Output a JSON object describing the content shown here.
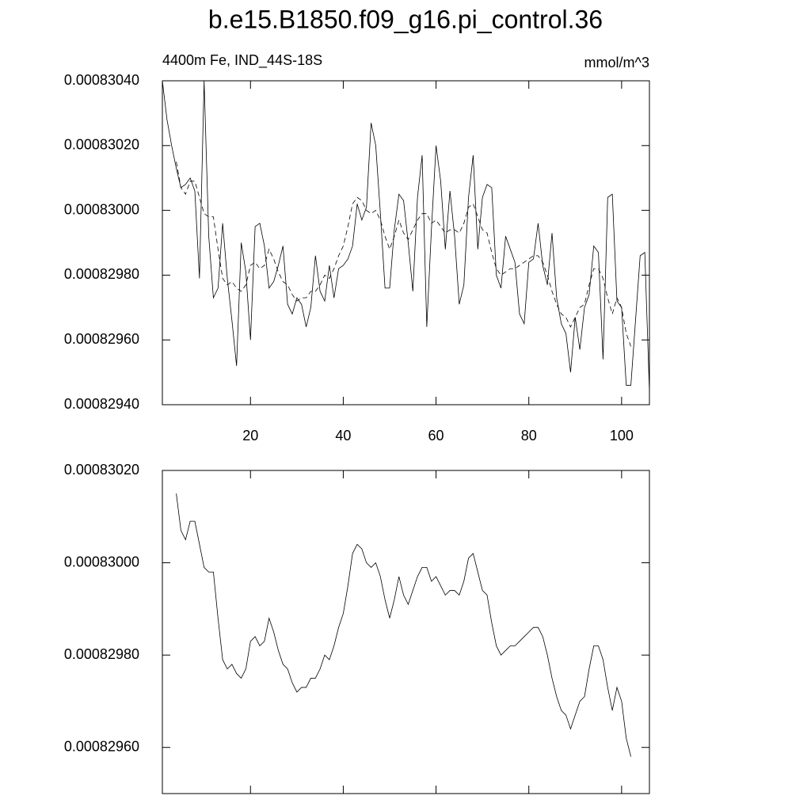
{
  "title": "b.e15.B1850.f09_g16.pi_control.36",
  "chart_data": [
    {
      "type": "line",
      "subtitle_left": "4400m Fe, IND_44S-18S",
      "subtitle_right": "mmol/m^3",
      "x": [
        1,
        2,
        3,
        4,
        5,
        6,
        7,
        8,
        9,
        10,
        11,
        12,
        13,
        14,
        15,
        16,
        17,
        18,
        19,
        20,
        21,
        22,
        23,
        24,
        25,
        26,
        27,
        28,
        29,
        30,
        31,
        32,
        33,
        34,
        35,
        36,
        37,
        38,
        39,
        40,
        41,
        42,
        43,
        44,
        45,
        46,
        47,
        48,
        49,
        50,
        51,
        52,
        53,
        54,
        55,
        56,
        57,
        58,
        59,
        60,
        61,
        62,
        63,
        64,
        65,
        66,
        67,
        68,
        69,
        70,
        71,
        72,
        73,
        74,
        75,
        76,
        77,
        78,
        79,
        80,
        81,
        82,
        83,
        84,
        85,
        86,
        87,
        88,
        89,
        90,
        91,
        92,
        93,
        94,
        95,
        96,
        97,
        98,
        99,
        100,
        101,
        102,
        103,
        104,
        105,
        106
      ],
      "xlim": [
        1,
        106
      ],
      "xticks": [
        20,
        40,
        60,
        80,
        100
      ],
      "ylim": [
        0.0008294,
        0.0008304
      ],
      "yticks": [
        {
          "value": 0.0008294,
          "label": "0.00082940"
        },
        {
          "value": 0.0008296,
          "label": "0.00082960"
        },
        {
          "value": 0.0008298,
          "label": "0.00082980"
        },
        {
          "value": 0.00083,
          "label": "0.00083000"
        },
        {
          "value": 0.0008302,
          "label": "0.00083020"
        },
        {
          "value": 0.0008304,
          "label": "0.00083040"
        }
      ],
      "series": [
        {
          "color": "#000000",
          "dashed": false,
          "values": [
            0.0008304,
            0.00083028,
            0.0008302,
            0.00083013,
            0.00083007,
            0.00083008,
            0.0008301,
            0.00083006,
            0.00082979,
            0.0008304,
            0.00082992,
            0.00082973,
            0.00082976,
            0.00082996,
            0.00082979,
            0.00082966,
            0.00082952,
            0.0008299,
            0.00082981,
            0.0008296,
            0.00082995,
            0.00082996,
            0.00082989,
            0.00082976,
            0.00082978,
            0.00082983,
            0.00082989,
            0.00082971,
            0.00082968,
            0.00082973,
            0.00082971,
            0.00082964,
            0.0008297,
            0.00082986,
            0.00082975,
            0.00082972,
            0.00082983,
            0.00082973,
            0.00082982,
            0.00082983,
            0.00082985,
            0.00082989,
            0.00083002,
            0.00082997,
            0.00083001,
            0.00083027,
            0.0008302,
            0.00082999,
            0.00082976,
            0.00082976,
            0.00082994,
            0.00083005,
            0.00083003,
            0.0008299,
            0.00082975,
            0.00083004,
            0.00083017,
            0.00082964,
            0.00082994,
            0.0008302,
            0.00083009,
            0.00082988,
            0.00083006,
            0.00082992,
            0.00082971,
            0.00082977,
            0.00083004,
            0.00083017,
            0.00082988,
            0.00083004,
            0.00083008,
            0.00083007,
            0.0008298,
            0.00082976,
            0.00082992,
            0.00082988,
            0.00082984,
            0.00082968,
            0.00082965,
            0.00082984,
            0.00082985,
            0.00082996,
            0.00082983,
            0.00082977,
            0.00082993,
            0.00082973,
            0.00082965,
            0.00082962,
            0.0008295,
            0.00082967,
            0.00082957,
            0.0008297,
            0.00082974,
            0.00082989,
            0.00082987,
            0.00082954,
            0.00083004,
            0.00083005,
            0.00082972,
            0.0008297,
            0.00082946,
            0.00082946,
            0.00082966,
            0.00082986,
            0.00082987,
            0.00082944
          ]
        },
        {
          "color": "#000000",
          "dashed": true,
          "x": [
            4,
            5,
            6,
            7,
            8,
            9,
            10,
            11,
            12,
            13,
            14,
            15,
            16,
            17,
            18,
            19,
            20,
            21,
            22,
            23,
            24,
            25,
            26,
            27,
            28,
            29,
            30,
            31,
            32,
            33,
            34,
            35,
            36,
            37,
            38,
            39,
            40,
            41,
            42,
            43,
            44,
            45,
            46,
            47,
            48,
            49,
            50,
            51,
            52,
            53,
            54,
            55,
            56,
            57,
            58,
            59,
            60,
            61,
            62,
            63,
            64,
            65,
            66,
            67,
            68,
            69,
            70,
            71,
            72,
            73,
            74,
            75,
            76,
            77,
            78,
            79,
            80,
            81,
            82,
            83,
            84,
            85,
            86,
            87,
            88,
            89,
            90,
            91,
            92,
            93,
            94,
            95,
            96,
            97,
            98,
            99,
            100,
            101,
            102
          ],
          "values": [
            0.00083015,
            0.00083007,
            0.00083005,
            0.00083009,
            0.00083009,
            0.00083004,
            0.00082999,
            0.00082998,
            0.00082998,
            0.00082988,
            0.00082979,
            0.00082977,
            0.00082978,
            0.00082976,
            0.00082975,
            0.00082977,
            0.00082983,
            0.00082984,
            0.00082982,
            0.00082983,
            0.00082988,
            0.00082985,
            0.00082981,
            0.00082978,
            0.00082977,
            0.00082974,
            0.00082972,
            0.00082973,
            0.00082973,
            0.00082975,
            0.00082975,
            0.00082977,
            0.0008298,
            0.00082979,
            0.00082982,
            0.00082986,
            0.00082989,
            0.00082995,
            0.00083002,
            0.00083004,
            0.00083003,
            0.00083,
            0.00082999,
            0.00083,
            0.00082997,
            0.00082992,
            0.00082988,
            0.00082992,
            0.00082997,
            0.00082993,
            0.00082991,
            0.00082994,
            0.00082997,
            0.00082999,
            0.00082999,
            0.00082996,
            0.00082997,
            0.00082995,
            0.00082993,
            0.00082994,
            0.00082994,
            0.00082993,
            0.00082996,
            0.00083001,
            0.00083002,
            0.00082998,
            0.00082994,
            0.00082993,
            0.00082987,
            0.00082982,
            0.0008298,
            0.00082981,
            0.00082982,
            0.00082982,
            0.00082983,
            0.00082984,
            0.00082985,
            0.00082986,
            0.00082986,
            0.00082984,
            0.0008298,
            0.00082975,
            0.00082971,
            0.00082968,
            0.00082967,
            0.00082964,
            0.00082967,
            0.0008297,
            0.00082971,
            0.00082977,
            0.00082982,
            0.00082982,
            0.00082979,
            0.00082973,
            0.00082968,
            0.00082973,
            0.0008297,
            0.00082962,
            0.00082958
          ]
        }
      ]
    },
    {
      "type": "line",
      "x": [
        4,
        5,
        6,
        7,
        8,
        9,
        10,
        11,
        12,
        13,
        14,
        15,
        16,
        17,
        18,
        19,
        20,
        21,
        22,
        23,
        24,
        25,
        26,
        27,
        28,
        29,
        30,
        31,
        32,
        33,
        34,
        35,
        36,
        37,
        38,
        39,
        40,
        41,
        42,
        43,
        44,
        45,
        46,
        47,
        48,
        49,
        50,
        51,
        52,
        53,
        54,
        55,
        56,
        57,
        58,
        59,
        60,
        61,
        62,
        63,
        64,
        65,
        66,
        67,
        68,
        69,
        70,
        71,
        72,
        73,
        74,
        75,
        76,
        77,
        78,
        79,
        80,
        81,
        82,
        83,
        84,
        85,
        86,
        87,
        88,
        89,
        90,
        91,
        92,
        93,
        94,
        95,
        96,
        97,
        98,
        99,
        100,
        101,
        102
      ],
      "xlim": [
        1,
        106
      ],
      "xticks": [
        20,
        40,
        60,
        80,
        100
      ],
      "ylim": [
        0.0008295,
        0.0008302
      ],
      "yticks": [
        {
          "value": 0.0008296,
          "label": "0.00082960"
        },
        {
          "value": 0.0008298,
          "label": "0.00082980"
        },
        {
          "value": 0.00083,
          "label": "0.00083000"
        },
        {
          "value": 0.0008302,
          "label": "0.00083020"
        }
      ],
      "series": [
        {
          "color": "#000000",
          "dashed": false,
          "values": [
            0.00083015,
            0.00083007,
            0.00083005,
            0.00083009,
            0.00083009,
            0.00083004,
            0.00082999,
            0.00082998,
            0.00082998,
            0.00082988,
            0.00082979,
            0.00082977,
            0.00082978,
            0.00082976,
            0.00082975,
            0.00082977,
            0.00082983,
            0.00082984,
            0.00082982,
            0.00082983,
            0.00082988,
            0.00082985,
            0.00082981,
            0.00082978,
            0.00082977,
            0.00082974,
            0.00082972,
            0.00082973,
            0.00082973,
            0.00082975,
            0.00082975,
            0.00082977,
            0.0008298,
            0.00082979,
            0.00082982,
            0.00082986,
            0.00082989,
            0.00082995,
            0.00083002,
            0.00083004,
            0.00083003,
            0.00083,
            0.00082999,
            0.00083,
            0.00082997,
            0.00082992,
            0.00082988,
            0.00082992,
            0.00082997,
            0.00082993,
            0.00082991,
            0.00082994,
            0.00082997,
            0.00082999,
            0.00082999,
            0.00082996,
            0.00082997,
            0.00082995,
            0.00082993,
            0.00082994,
            0.00082994,
            0.00082993,
            0.00082996,
            0.00083001,
            0.00083002,
            0.00082998,
            0.00082994,
            0.00082993,
            0.00082987,
            0.00082982,
            0.0008298,
            0.00082981,
            0.00082982,
            0.00082982,
            0.00082983,
            0.00082984,
            0.00082985,
            0.00082986,
            0.00082986,
            0.00082984,
            0.0008298,
            0.00082975,
            0.00082971,
            0.00082968,
            0.00082967,
            0.00082964,
            0.00082967,
            0.0008297,
            0.00082971,
            0.00082977,
            0.00082982,
            0.00082982,
            0.00082979,
            0.00082973,
            0.00082968,
            0.00082973,
            0.0008297,
            0.00082962,
            0.00082958
          ]
        }
      ]
    }
  ]
}
